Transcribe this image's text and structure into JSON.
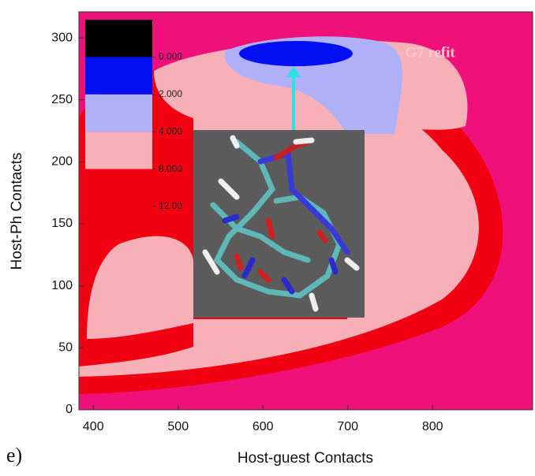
{
  "chart_data": {
    "type": "contour",
    "xlabel": "Host-guest Contacts",
    "ylabel": "Host-Ph Contacts",
    "xlim": [
      383,
      918
    ],
    "ylim": [
      0,
      321
    ],
    "xticks": [
      400,
      500,
      600,
      700,
      800
    ],
    "yticks": [
      0,
      50,
      100,
      150,
      200,
      250,
      300
    ],
    "levels": [
      {
        "value": 0,
        "label": "0.000"
      },
      {
        "value": 2,
        "label": "2.000"
      },
      {
        "value": 4,
        "label": "4.000"
      },
      {
        "value": 8,
        "label": "8.000"
      },
      {
        "value": 12,
        "label": "12.00"
      }
    ],
    "level_colors": [
      "#000000",
      "#0010f0",
      "#b0b0f8",
      "#f8b0b8",
      "#f00010"
    ],
    "background_color": "#f0107a",
    "annotation": "G7 refit",
    "panel_label": "e)"
  }
}
